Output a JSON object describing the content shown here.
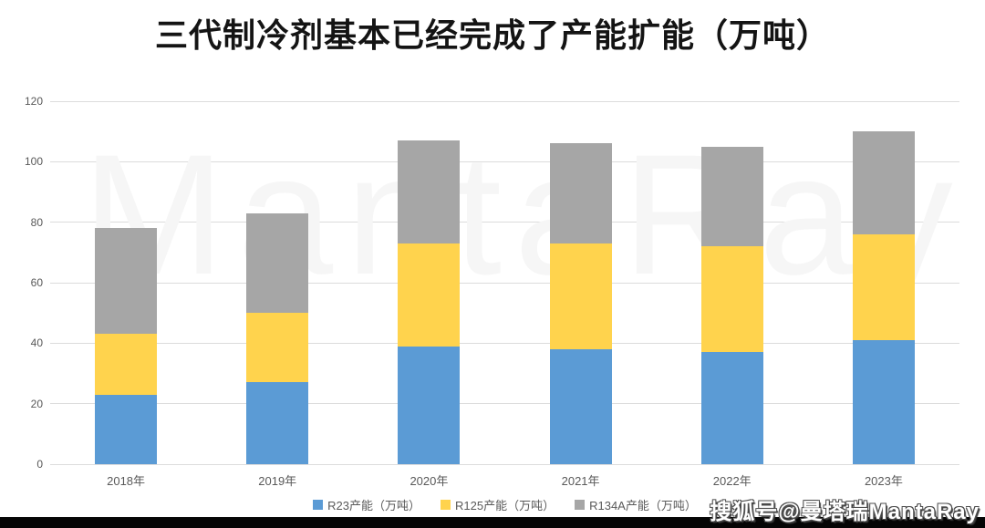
{
  "title": "三代制冷剂基本已经完成了产能扩能（万吨）",
  "chart_data": {
    "type": "bar",
    "stacked": true,
    "title": "三代制冷剂基本已经完成了产能扩能（万吨）",
    "categories": [
      "2018年",
      "2019年",
      "2020年",
      "2021年",
      "2022年",
      "2023年"
    ],
    "series": [
      {
        "id": "r23",
        "name": "R23产能（万吨）",
        "color": "#5B9BD5",
        "values": [
          23,
          27,
          39,
          38,
          37,
          41
        ]
      },
      {
        "id": "r125",
        "name": "R125产能（万吨）",
        "color": "#FFD34D",
        "values": [
          20,
          23,
          34,
          35,
          35,
          35
        ]
      },
      {
        "id": "r134a",
        "name": "R134A产能（万吨）",
        "color": "#A6A6A6",
        "values": [
          35,
          33,
          34,
          33,
          33,
          34
        ]
      }
    ],
    "stack_totals": [
      78,
      83,
      107,
      106,
      105,
      110
    ],
    "xlabel": "",
    "ylabel": "",
    "ylim": [
      0,
      120
    ],
    "yticks": [
      0,
      20,
      40,
      60,
      80,
      100,
      120
    ],
    "grid": true,
    "legend_position": "bottom"
  },
  "watermark": {
    "plot_text": "MantaRay",
    "credit_text": "搜狐号@曼塔瑞MantaRay"
  },
  "colors": {
    "background": "#ffffff",
    "gridline": "#dcdcdc",
    "axis_text": "#595959",
    "title_text": "#141414",
    "bottom_bar": "#050505",
    "plot_watermark": "#f6f6f6",
    "credit_fill": "#ffffff"
  }
}
